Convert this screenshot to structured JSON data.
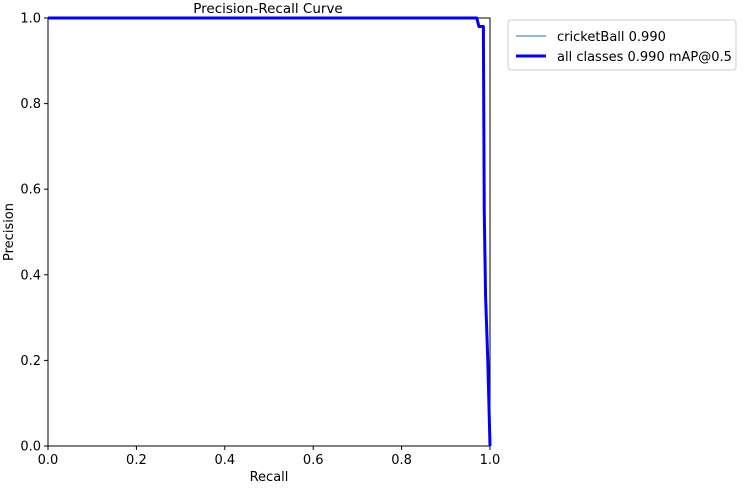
{
  "chart_data": {
    "type": "line",
    "title": "Precision-Recall Curve",
    "xlabel": "Recall",
    "ylabel": "Precision",
    "xlim": [
      0,
      1
    ],
    "ylim": [
      0,
      1
    ],
    "grid": false,
    "legend_placement": "outside-top-right",
    "x_ticks": [
      "0.0",
      "0.2",
      "0.4",
      "0.6",
      "0.8",
      "1.0"
    ],
    "y_ticks": [
      "0.0",
      "0.2",
      "0.4",
      "0.6",
      "0.8",
      "1.0"
    ],
    "series": [
      {
        "name": "cricketBall 0.990",
        "color": "#1f77b4",
        "x": [
          0.0,
          0.97,
          0.975,
          0.985,
          0.987,
          0.99,
          0.995,
          1.0
        ],
        "y": [
          1.0,
          1.0,
          0.98,
          0.98,
          0.55,
          0.35,
          0.2,
          0.0
        ]
      },
      {
        "name": "all classes 0.990 mAP@0.5",
        "color": "#0000ff",
        "x": [
          0.0,
          0.97,
          0.975,
          0.985,
          0.987,
          0.99,
          0.995,
          1.0
        ],
        "y": [
          1.0,
          1.0,
          0.98,
          0.98,
          0.55,
          0.35,
          0.2,
          0.0
        ]
      }
    ]
  }
}
